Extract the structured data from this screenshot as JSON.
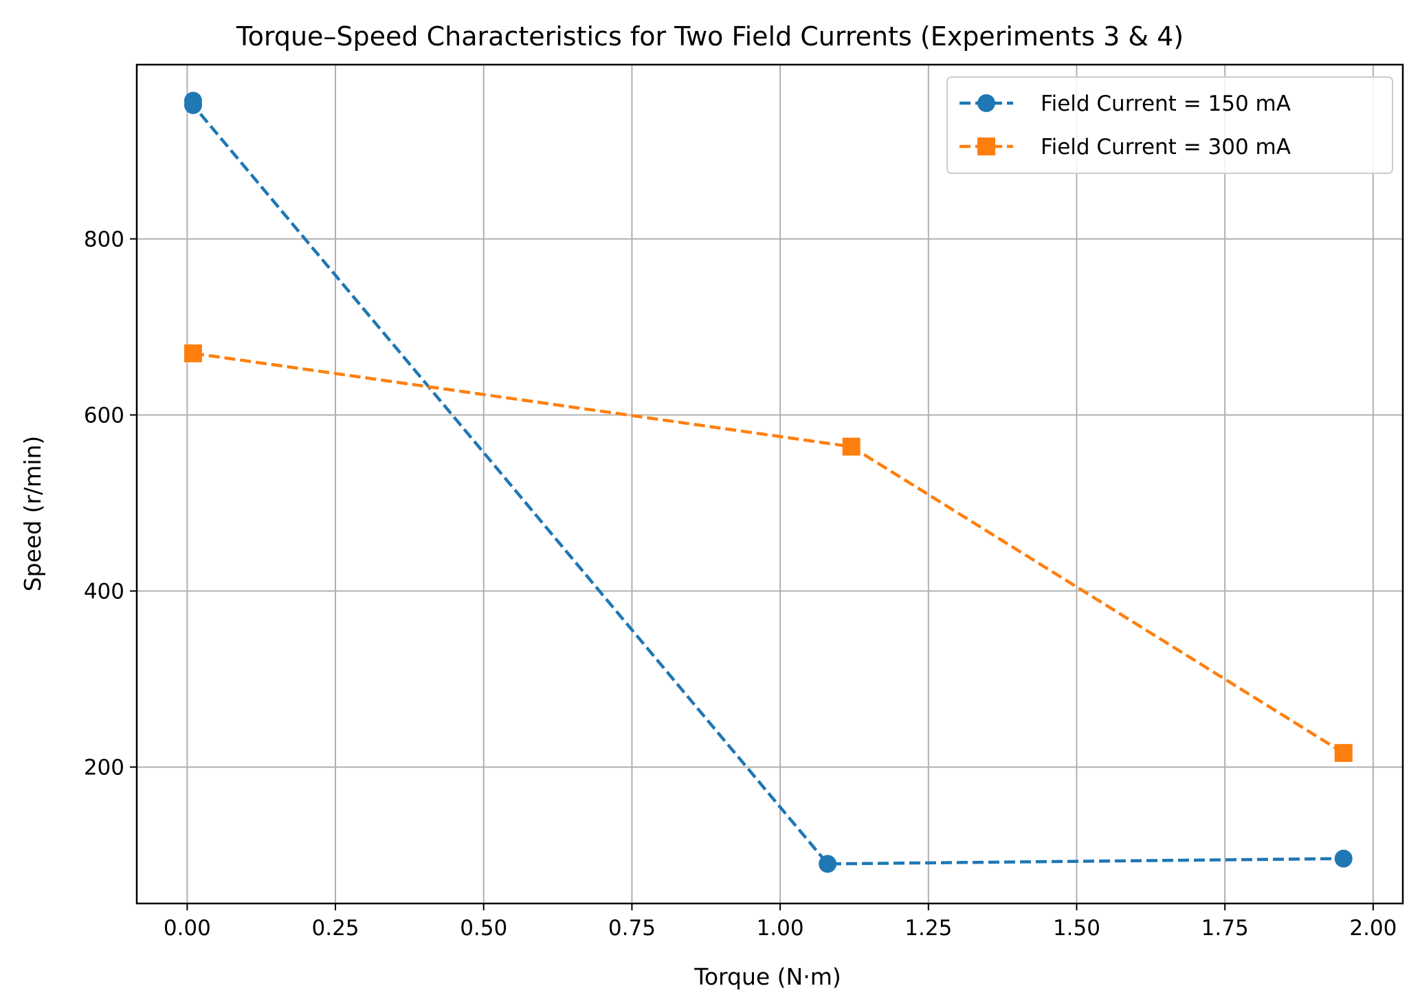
{
  "chart_data": {
    "type": "line",
    "title": "Torque–Speed Characteristics for Two Field Currents (Experiments 3 & 4)",
    "xlabel": "Torque (N·m)",
    "ylabel": "Speed (r/min)",
    "xlim": [
      -0.085,
      2.05
    ],
    "ylim": [
      45,
      998
    ],
    "xticks": [
      0.0,
      0.25,
      0.5,
      0.75,
      1.0,
      1.25,
      1.5,
      1.75,
      2.0
    ],
    "xtick_labels": [
      "0.00",
      "0.25",
      "0.50",
      "0.75",
      "1.00",
      "1.25",
      "1.50",
      "1.75",
      "2.00"
    ],
    "yticks": [
      200,
      400,
      600,
      800
    ],
    "ytick_labels": [
      "200",
      "400",
      "600",
      "800"
    ],
    "grid": true,
    "legend_position": "top-right",
    "series": [
      {
        "name": "Field Current = 150 mA",
        "color": "#1f77b4",
        "marker": "circle",
        "line_style": "dashed",
        "x": [
          0.01,
          0.01,
          1.08,
          1.95
        ],
        "y": [
          957,
          952,
          90,
          96
        ]
      },
      {
        "name": "Field Current = 300 mA",
        "color": "#ff7f0e",
        "marker": "square",
        "line_style": "dashed",
        "x": [
          0.01,
          1.12,
          1.95
        ],
        "y": [
          670,
          564,
          216
        ]
      }
    ]
  }
}
